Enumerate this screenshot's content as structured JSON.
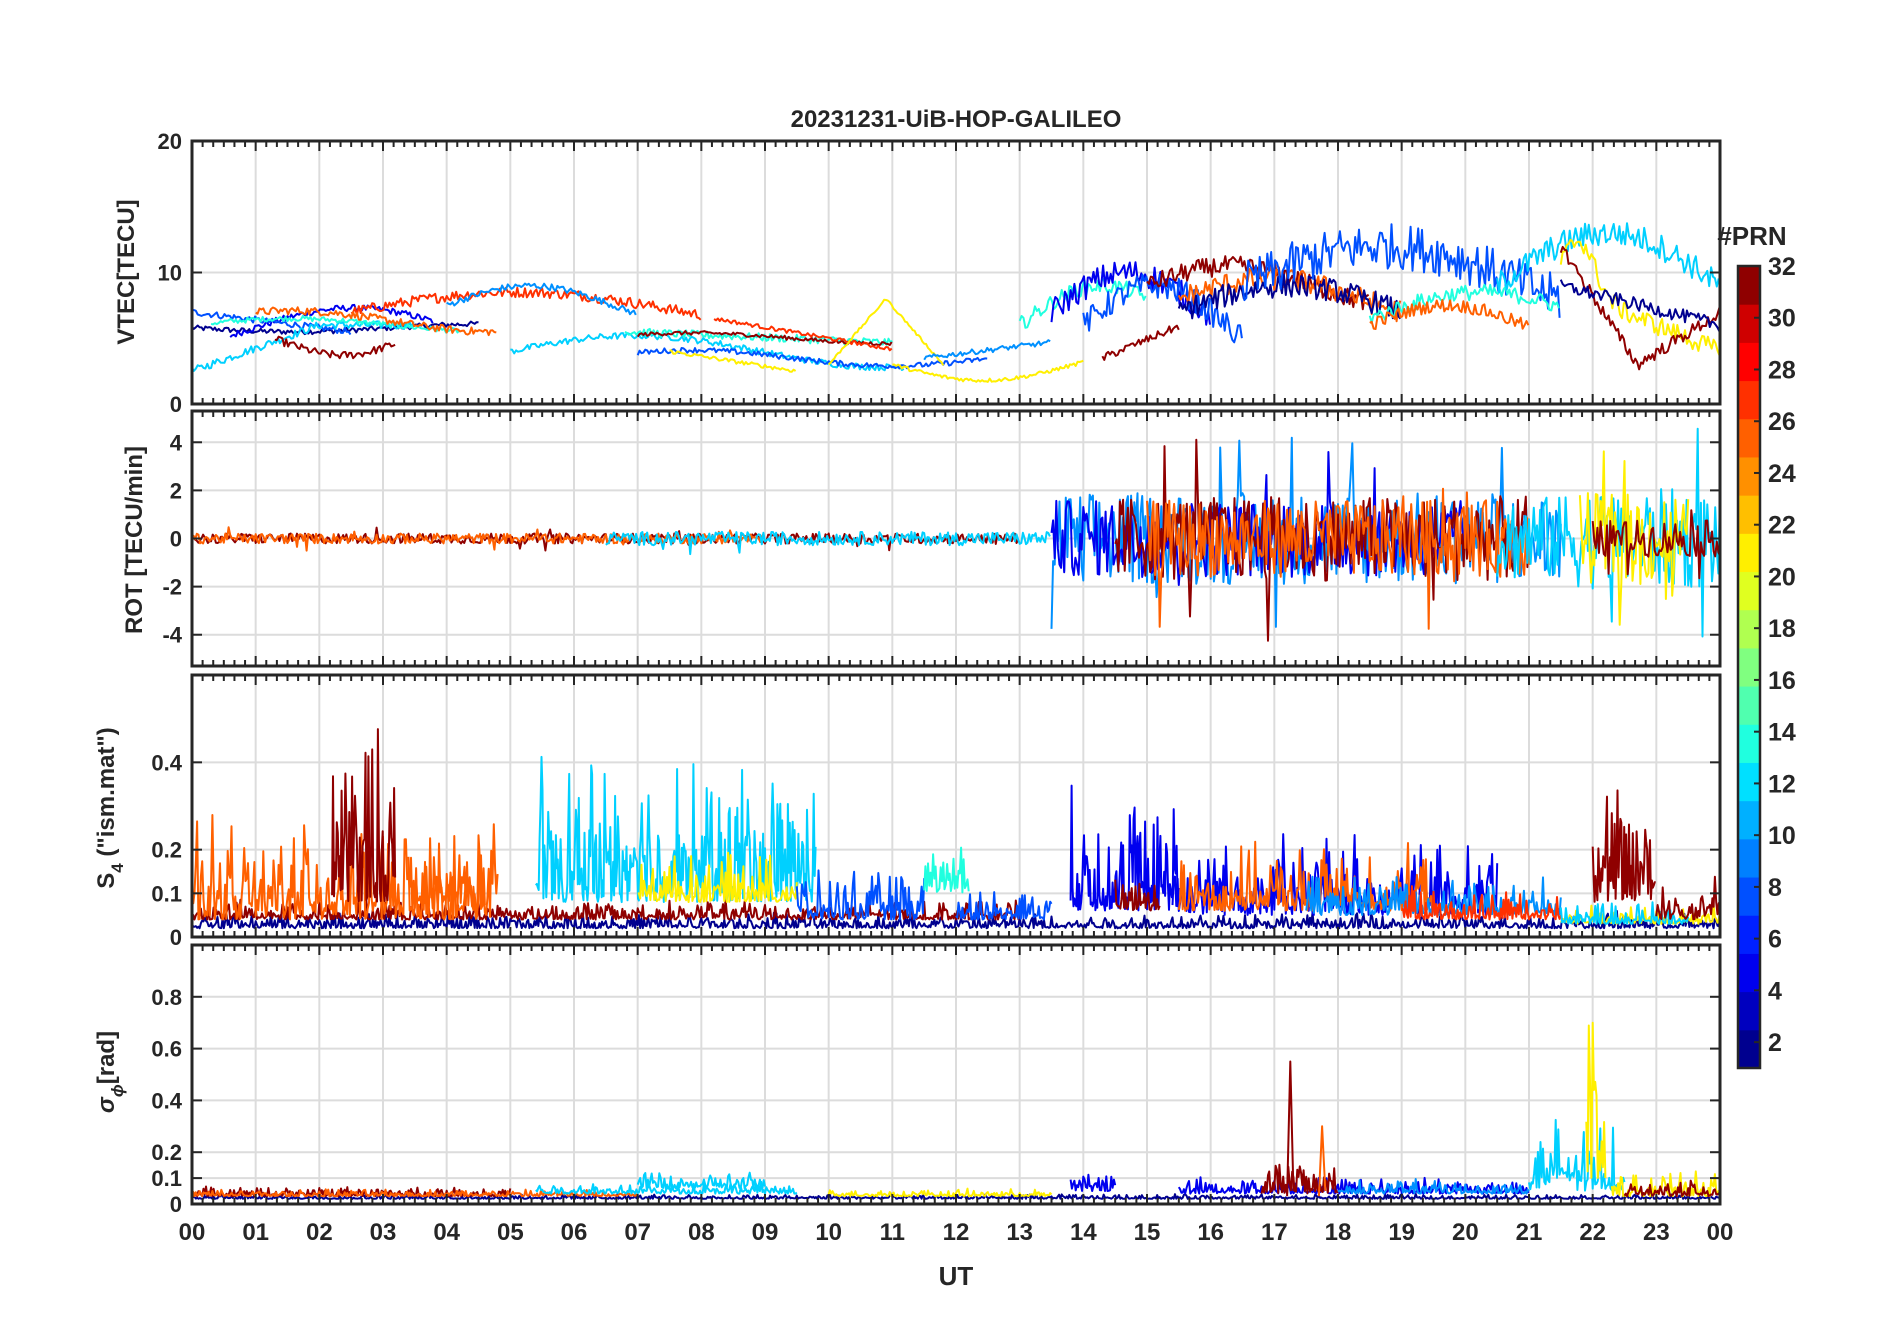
{
  "chart_data": [
    {
      "type": "line",
      "title": "20231231-UiB-HOP-GALILEO",
      "ylabel": "VTEC[TECU]",
      "ylim": [
        0,
        20
      ],
      "yticks": [
        "0",
        "10",
        "20"
      ],
      "xlim": [
        0,
        24
      ],
      "grid": true
    },
    {
      "type": "line",
      "ylabel": "ROT [TECU/min]",
      "ylim": [
        -5.3,
        5.3
      ],
      "yticks": [
        "-4",
        "-2",
        "0",
        "2",
        "4"
      ],
      "xlim": [
        0,
        24
      ],
      "grid": true
    },
    {
      "type": "line",
      "ylabel_main": "S",
      "ylabel_sub": "4",
      "ylabel_rest": " (\"ism.mat\")",
      "ylim": [
        0,
        0.6
      ],
      "yticks": [
        "0",
        "0.1",
        "0.2",
        "0.4"
      ],
      "xlim": [
        0,
        24
      ],
      "grid": true
    },
    {
      "type": "line",
      "ylabel_main": "σ",
      "ylabel_sub": "ϕ",
      "ylabel_rest": "[rad]",
      "ylim": [
        0,
        1
      ],
      "yticks": [
        "0",
        "0.1",
        "0.2",
        "0.4",
        "0.6",
        "0.8"
      ],
      "xlim": [
        0,
        24
      ],
      "grid": true,
      "xticklabels": [
        "00",
        "01",
        "02",
        "03",
        "04",
        "05",
        "06",
        "07",
        "08",
        "09",
        "10",
        "11",
        "12",
        "13",
        "14",
        "15",
        "16",
        "17",
        "18",
        "19",
        "20",
        "21",
        "22",
        "23",
        "00"
      ],
      "xlabel": "UT"
    }
  ],
  "colorbar": {
    "title": "#PRN",
    "min": 1,
    "max": 32,
    "ticks": [
      "2",
      "4",
      "6",
      "8",
      "10",
      "12",
      "14",
      "16",
      "18",
      "20",
      "22",
      "24",
      "26",
      "28",
      "30",
      "32"
    ],
    "colors": [
      "#00008f",
      "#0000bf",
      "#0000ef",
      "#0020ff",
      "#0050ff",
      "#0080ff",
      "#00b0ff",
      "#00e0ff",
      "#20ffdf",
      "#50ffaf",
      "#80ff80",
      "#b0ff50",
      "#e0ff20",
      "#ffef00",
      "#ffbf00",
      "#ff9000",
      "#ff6000",
      "#ff3000",
      "#ff0000",
      "#cf0000",
      "#8f0000"
    ]
  },
  "series_colors": {
    "prn_2": "#00008f",
    "prn_5": "#0000ef",
    "prn_7": "#0050ff",
    "prn_9": "#0090ff",
    "prn_11": "#00d0ff",
    "prn_13": "#20ffdf",
    "prn_19": "#ffef00",
    "prn_24": "#ff6000",
    "prn_27": "#ff3000",
    "prn_31": "#8f0000"
  }
}
